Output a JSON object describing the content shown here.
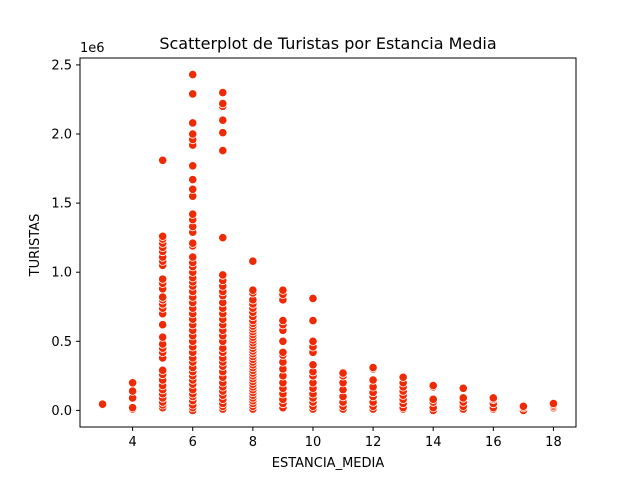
{
  "chart_data": {
    "type": "scatter",
    "title": "Scatterplot de Turistas por Estancia Media",
    "xlabel": "ESTANCIA_MEDIA",
    "ylabel": "TURISTAS",
    "y_offset_label": "1e6",
    "xlim": [
      2.25,
      18.75
    ],
    "ylim": [
      -0.12,
      2.55
    ],
    "x_ticks": [
      4,
      6,
      8,
      10,
      12,
      14,
      16,
      18
    ],
    "x_tick_labels": [
      "4",
      "6",
      "8",
      "10",
      "12",
      "14",
      "16",
      "18"
    ],
    "y_ticks": [
      0.0,
      0.5,
      1.0,
      1.5,
      2.0,
      2.5
    ],
    "y_tick_labels": [
      "0.0",
      "0.5",
      "1.0",
      "1.5",
      "2.0",
      "2.5"
    ],
    "grid": false,
    "marker_color": "#ee2a05",
    "marker_edge_color": "#ffffff",
    "groups": [
      {
        "x": 3,
        "y": [
          0.04,
          0.045
        ]
      },
      {
        "x": 4,
        "y": [
          0.01,
          0.02,
          0.09,
          0.14,
          0.2
        ]
      },
      {
        "x": 5,
        "y": [
          0.02,
          0.04,
          0.06,
          0.09,
          0.12,
          0.15,
          0.18,
          0.22,
          0.26,
          0.29,
          0.38,
          0.42,
          0.45,
          0.48,
          0.53,
          0.62,
          0.7,
          0.74,
          0.77,
          0.8,
          0.82,
          0.88,
          0.92,
          0.95,
          1.05,
          1.08,
          1.11,
          1.15,
          1.18,
          1.21,
          1.24,
          1.26,
          1.81
        ]
      },
      {
        "x": 6,
        "y": [
          0.0,
          0.02,
          0.04,
          0.07,
          0.1,
          0.12,
          0.15,
          0.19,
          0.22,
          0.25,
          0.28,
          0.31,
          0.35,
          0.38,
          0.42,
          0.46,
          0.5,
          0.54,
          0.58,
          0.62,
          0.66,
          0.7,
          0.74,
          0.78,
          0.82,
          0.86,
          0.9,
          0.93,
          0.96,
          1.0,
          1.04,
          1.07,
          1.11,
          1.19,
          1.21,
          1.29,
          1.33,
          1.38,
          1.42,
          1.55,
          1.6,
          1.67,
          1.77,
          1.92,
          1.96,
          2.0,
          2.08,
          2.29,
          2.43
        ]
      },
      {
        "x": 7,
        "y": [
          0.01,
          0.03,
          0.05,
          0.08,
          0.11,
          0.14,
          0.17,
          0.2,
          0.24,
          0.28,
          0.32,
          0.35,
          0.38,
          0.42,
          0.45,
          0.5,
          0.54,
          0.58,
          0.62,
          0.66,
          0.7,
          0.74,
          0.78,
          0.83,
          0.86,
          0.9,
          0.94,
          0.98,
          1.25,
          1.88,
          2.01,
          2.1,
          2.2,
          2.22,
          2.3
        ]
      },
      {
        "x": 8,
        "y": [
          0.01,
          0.03,
          0.05,
          0.07,
          0.09,
          0.11,
          0.13,
          0.15,
          0.17,
          0.19,
          0.21,
          0.23,
          0.25,
          0.27,
          0.29,
          0.31,
          0.33,
          0.35,
          0.37,
          0.39,
          0.41,
          0.43,
          0.45,
          0.47,
          0.49,
          0.51,
          0.53,
          0.55,
          0.57,
          0.59,
          0.61,
          0.63,
          0.65,
          0.68,
          0.71,
          0.74,
          0.77,
          0.8,
          0.85,
          0.87,
          1.08
        ]
      },
      {
        "x": 9,
        "y": [
          0.02,
          0.05,
          0.08,
          0.12,
          0.16,
          0.2,
          0.25,
          0.3,
          0.35,
          0.4,
          0.42,
          0.5,
          0.58,
          0.62,
          0.65,
          0.8,
          0.84,
          0.87
        ]
      },
      {
        "x": 10,
        "y": [
          0.01,
          0.03,
          0.06,
          0.09,
          0.12,
          0.16,
          0.2,
          0.25,
          0.28,
          0.33,
          0.42,
          0.46,
          0.5,
          0.65,
          0.81
        ]
      },
      {
        "x": 11,
        "y": [
          0.01,
          0.03,
          0.06,
          0.1,
          0.15,
          0.2,
          0.25,
          0.27
        ]
      },
      {
        "x": 12,
        "y": [
          0.01,
          0.03,
          0.06,
          0.1,
          0.13,
          0.17,
          0.22,
          0.3,
          0.31
        ]
      },
      {
        "x": 13,
        "y": [
          0.01,
          0.02,
          0.05,
          0.08,
          0.11,
          0.14,
          0.17,
          0.2,
          0.24
        ]
      },
      {
        "x": 14,
        "y": [
          0.0,
          0.02,
          0.06,
          0.08,
          0.17,
          0.18
        ]
      },
      {
        "x": 15,
        "y": [
          0.01,
          0.03,
          0.06,
          0.09,
          0.16
        ]
      },
      {
        "x": 16,
        "y": [
          0.01,
          0.02,
          0.05,
          0.08,
          0.09
        ]
      },
      {
        "x": 17,
        "y": [
          0.0,
          0.02,
          0.03
        ]
      },
      {
        "x": 18,
        "y": [
          0.02,
          0.03,
          0.04,
          0.05
        ]
      }
    ]
  }
}
